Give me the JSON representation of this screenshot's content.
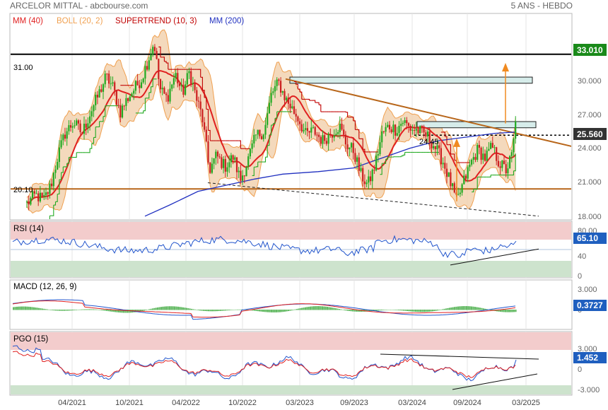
{
  "header": {
    "title": "ARCELOR MITTAL - abcbourse.com",
    "period": "5 ANS - HEBDO"
  },
  "chart_data": [
    {
      "type": "candlestick",
      "panel": "price",
      "legend": [
        {
          "label": "MM (40)",
          "color": "#e02020"
        },
        {
          "label": "BOLL (20, 2)",
          "color": "#f0a050"
        },
        {
          "label": "SUPERTREND (10, 3)",
          "color": "#c00000"
        },
        {
          "label": "MM (200)",
          "color": "#2030c0"
        }
      ],
      "x_ticks": [
        "04/2021",
        "10/2021",
        "04/2022",
        "10/2022",
        "03/2023",
        "09/2023",
        "03/2024",
        "09/2024",
        "03/2025"
      ],
      "y_ticks": [
        "30.000",
        "27.000",
        "24.000",
        "21.000",
        "18.000"
      ],
      "ylim": [
        17.6,
        34.3
      ],
      "level_labels": [
        {
          "text": "31.00",
          "value": 31.0
        },
        {
          "text": "20.10",
          "value": 20.1
        },
        {
          "text": "24.45",
          "value": 24.45
        }
      ],
      "last_price": "25.560",
      "target_price": "33.010",
      "colors": {
        "up": "#22aa22",
        "down": "#cc2020",
        "bollinger_fill": "#f2d2b0",
        "ma40": "#e02020",
        "ma200": "#2030c0",
        "supertrend_up": "#22aa22",
        "supertrend_down": "#c00000",
        "trendline": "#c06a10",
        "target_badge": "#1a8a1a",
        "price_badge": "#333333"
      }
    },
    {
      "type": "line",
      "panel": "rsi",
      "title": "RSI (14)",
      "y_ticks": [
        "80.00",
        "40",
        "0"
      ],
      "last_value": "65.10",
      "colors": {
        "line": "#2255cc",
        "overbought_zone": "#f0c8c8",
        "oversold_zone": "#c8e0c8",
        "badge": "#1f5fbf"
      }
    },
    {
      "type": "line",
      "panel": "macd",
      "title": "MACD (12, 26, 9)",
      "y_ticks": [
        "3.000",
        "0"
      ],
      "last_value": "0.3727",
      "colors": {
        "macd": "#2255cc",
        "signal": "#e02020",
        "histogram": "#66bb66",
        "badge": "#1f5fbf"
      }
    },
    {
      "type": "line",
      "panel": "pgo",
      "title": "PGO (15)",
      "y_ticks": [
        "3.000",
        "0",
        "-3.000"
      ],
      "last_value": "1.452",
      "colors": {
        "pgo": "#2255cc",
        "signal": "#e02020",
        "upper_zone": "#f0c8c8",
        "lower_zone": "#c8e0c8",
        "badge": "#1f5fbf"
      }
    }
  ]
}
